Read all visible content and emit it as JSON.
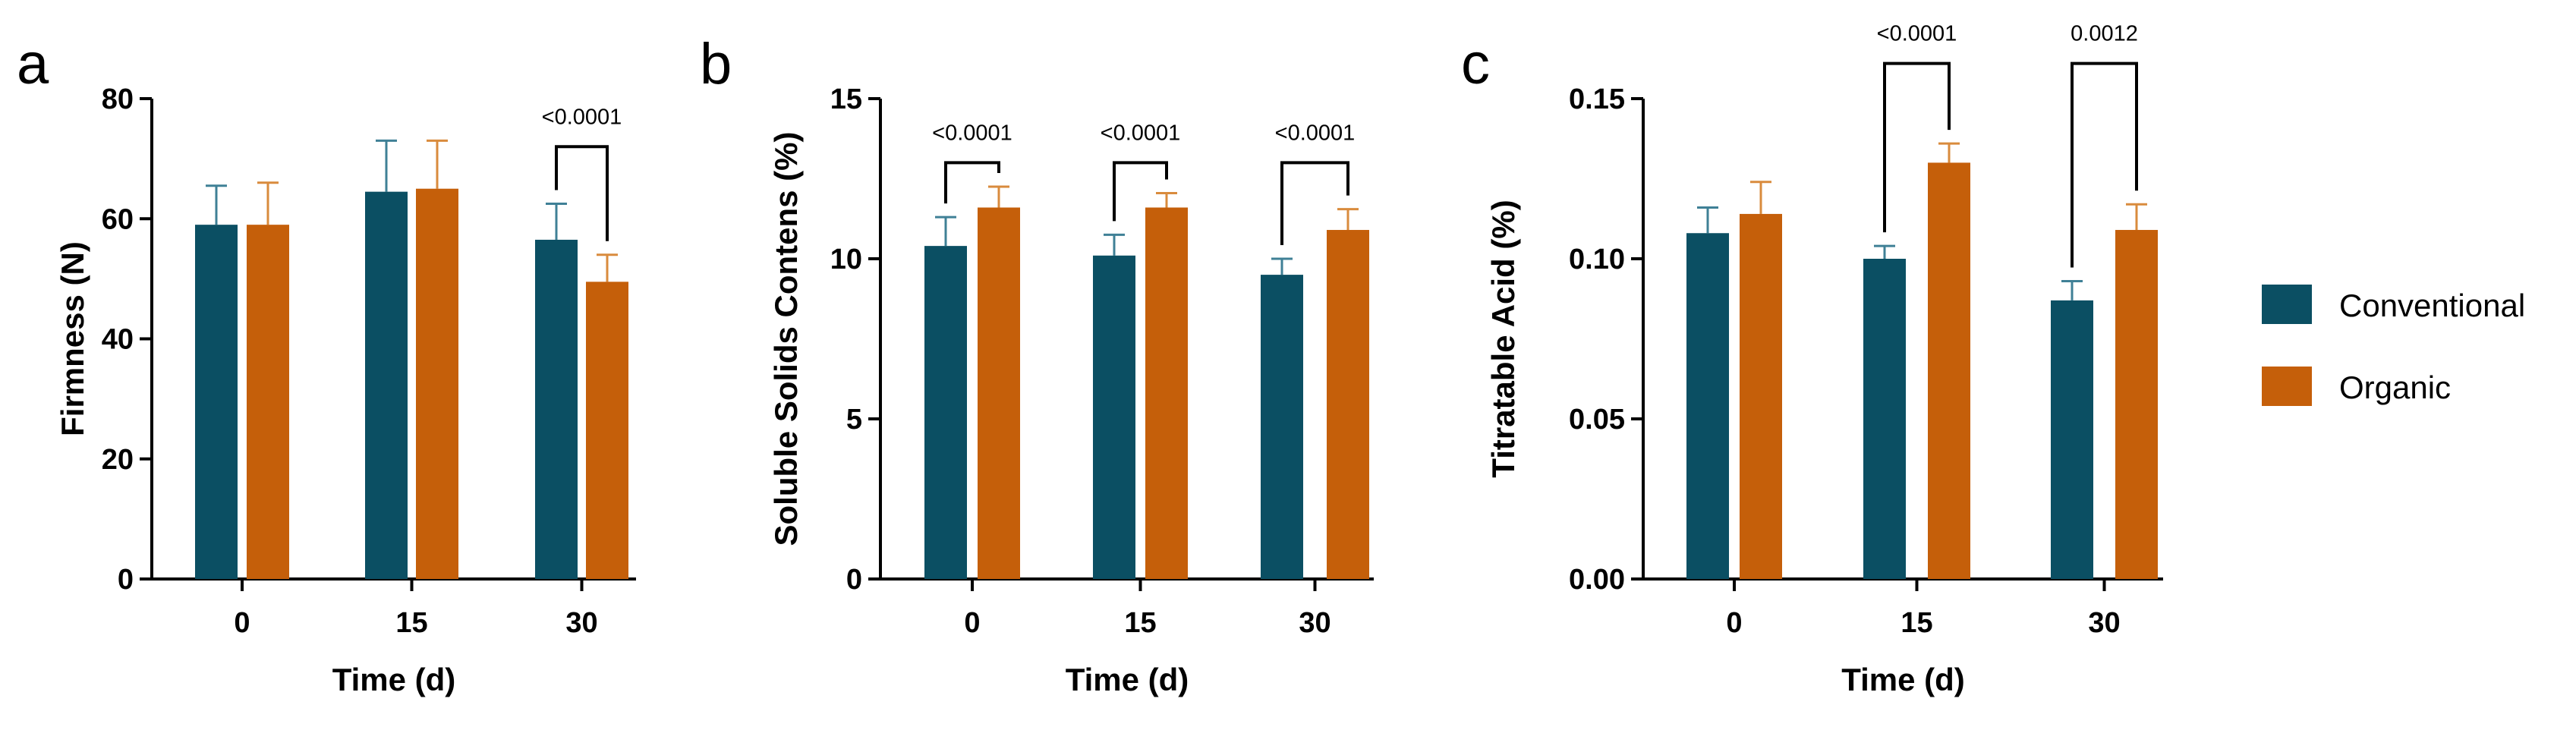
{
  "chart_data": [
    {
      "type": "bar",
      "panel_label": "a",
      "categories": [
        "0",
        "15",
        "30"
      ],
      "xlabel": "Time (d)",
      "ylabel": "Firmness (N)",
      "ylim": [
        0,
        80
      ],
      "yticks": [
        "0",
        "20",
        "40",
        "60",
        "80"
      ],
      "series": [
        {
          "name": "Conventional",
          "values": [
            59,
            64.5,
            56.5
          ],
          "errors": [
            6.5,
            8.5,
            6
          ]
        },
        {
          "name": "Organic",
          "values": [
            59,
            65,
            49.5
          ],
          "errors": [
            7,
            8,
            4.5
          ]
        }
      ],
      "annotations": [
        {
          "category_index": 2,
          "text": "<0.0001",
          "top": 72
        }
      ]
    },
    {
      "type": "bar",
      "panel_label": "b",
      "categories": [
        "0",
        "15",
        "30"
      ],
      "xlabel": "Time (d)",
      "ylabel": "Soluble Solids Contens  (%)",
      "ylim": [
        0,
        15
      ],
      "yticks": [
        "0",
        "5",
        "10",
        "15"
      ],
      "series": [
        {
          "name": "Conventional",
          "values": [
            10.4,
            10.1,
            9.5
          ],
          "errors": [
            0.9,
            0.65,
            0.5
          ]
        },
        {
          "name": "Organic",
          "values": [
            11.6,
            11.6,
            10.9
          ],
          "errors": [
            0.65,
            0.45,
            0.65
          ]
        }
      ],
      "annotations": [
        {
          "category_index": 0,
          "text": "<0.0001",
          "top": 13.0
        },
        {
          "category_index": 1,
          "text": "<0.0001",
          "top": 13.0
        },
        {
          "category_index": 2,
          "text": "<0.0001",
          "top": 13.0
        }
      ]
    },
    {
      "type": "bar",
      "panel_label": "c",
      "categories": [
        "0",
        "15",
        "30"
      ],
      "xlabel": "Time (d)",
      "ylabel": "Titratable Acid (%)",
      "ylim": [
        0,
        0.15
      ],
      "yticks": [
        "0.00",
        "0.05",
        "0.10",
        "0.15"
      ],
      "series": [
        {
          "name": "Conventional",
          "values": [
            0.108,
            0.1,
            0.087
          ],
          "errors": [
            0.008,
            0.004,
            0.006
          ]
        },
        {
          "name": "Organic",
          "values": [
            0.114,
            0.13,
            0.109
          ],
          "errors": [
            0.01,
            0.006,
            0.008
          ]
        }
      ],
      "annotations": [
        {
          "category_index": 1,
          "text": "<0.0001",
          "top": 0.161
        },
        {
          "category_index": 2,
          "text": "0.0012",
          "top": 0.161
        }
      ]
    }
  ],
  "legend": {
    "placement": "right",
    "items": [
      {
        "label": "Conventional",
        "color": "#0b4f63"
      },
      {
        "label": "Organic",
        "color": "#c55f0a"
      }
    ]
  },
  "colors": {
    "conventional": "#0b4f63",
    "organic": "#c55f0a",
    "conventional_error": "#3f8096",
    "organic_error": "#d98b3d"
  }
}
